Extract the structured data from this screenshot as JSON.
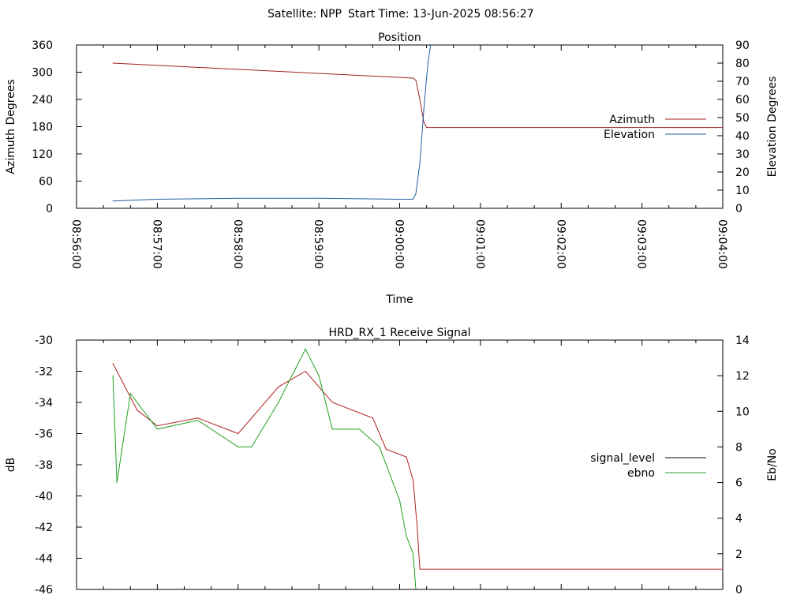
{
  "header": {
    "satellite": "Satellite: NPP",
    "start_time": "Start Time: 13-Jun-2025 08:56:27"
  },
  "colors": {
    "azimuth": "#a02020",
    "elevation": "#2060a0",
    "signal_level": "#b02020",
    "ebno": "#20a020",
    "ebno_low": "#2060c0"
  },
  "chart_data": [
    {
      "type": "line",
      "title": "Position",
      "xlabel": "Time",
      "ylabel": "Azimuth Degrees",
      "y2label": "Elevation Degrees",
      "x_ticks": [
        "08:56:00",
        "08:57:00",
        "08:58:00",
        "08:59:00",
        "09:00:00",
        "09:01:00",
        "09:02:00",
        "09:03:00",
        "09:04:00"
      ],
      "xlim": [
        "08:56:00",
        "09:04:00"
      ],
      "ylim": [
        0,
        360
      ],
      "y_ticks": [
        0,
        60,
        120,
        180,
        240,
        300,
        360
      ],
      "y2lim": [
        0,
        90
      ],
      "y2_ticks": [
        0,
        10,
        20,
        30,
        40,
        50,
        60,
        70,
        80,
        90
      ],
      "legend_position": "right",
      "series": [
        {
          "name": "Azimuth",
          "axis": "y",
          "points": [
            [
              "08:56:27",
              320
            ],
            [
              "09:00:10",
              287
            ],
            [
              "09:00:12",
              282
            ],
            [
              "09:00:15",
              240
            ],
            [
              "09:00:18",
              190
            ],
            [
              "09:00:20",
              178
            ],
            [
              "09:04:00",
              178
            ]
          ]
        },
        {
          "name": "Elevation",
          "axis": "y2",
          "points": [
            [
              "08:56:27",
              4
            ],
            [
              "08:57:00",
              5
            ],
            [
              "08:58:00",
              5.5
            ],
            [
              "08:59:00",
              5.5
            ],
            [
              "09:00:00",
              5
            ],
            [
              "09:00:10",
              5
            ],
            [
              "09:00:12",
              8
            ],
            [
              "09:00:15",
              25
            ],
            [
              "09:00:18",
              55
            ],
            [
              "09:00:21",
              80
            ],
            [
              "09:00:23",
              90
            ]
          ]
        }
      ]
    },
    {
      "type": "line",
      "title": "HRD_RX_1 Receive Signal",
      "ylabel": "dB",
      "y2label": "Eb/No",
      "xlim": [
        "08:56:00",
        "09:04:00"
      ],
      "ylim": [
        -46,
        -30
      ],
      "y_ticks": [
        -46,
        -44,
        -42,
        -40,
        -38,
        -36,
        -34,
        -32,
        -30
      ],
      "y2lim": [
        0,
        14
      ],
      "y2_ticks": [
        0,
        2,
        4,
        6,
        8,
        10,
        12,
        14
      ],
      "legend_position": "right",
      "series": [
        {
          "name": "signal_level",
          "axis": "y",
          "points": [
            [
              "08:56:27",
              -31.5
            ],
            [
              "08:56:45",
              -34.5
            ],
            [
              "08:57:00",
              -35.5
            ],
            [
              "08:57:30",
              -35
            ],
            [
              "08:58:00",
              -36
            ],
            [
              "08:58:30",
              -33
            ],
            [
              "08:58:50",
              -32
            ],
            [
              "08:59:10",
              -34
            ],
            [
              "08:59:40",
              -35
            ],
            [
              "08:59:50",
              -37
            ],
            [
              "09:00:05",
              -37.5
            ],
            [
              "09:00:10",
              -39
            ],
            [
              "09:00:13",
              -42
            ],
            [
              "09:00:15",
              -44.7
            ],
            [
              "09:04:00",
              -44.7
            ]
          ]
        },
        {
          "name": "ebno",
          "axis": "y2",
          "points": [
            [
              "08:56:27",
              12
            ],
            [
              "08:56:30",
              6
            ],
            [
              "08:56:40",
              11
            ],
            [
              "08:57:00",
              9
            ],
            [
              "08:57:30",
              9.5
            ],
            [
              "08:58:00",
              8
            ],
            [
              "08:58:10",
              8
            ],
            [
              "08:58:30",
              10.5
            ],
            [
              "08:58:50",
              13.5
            ],
            [
              "08:59:00",
              12
            ],
            [
              "08:59:10",
              9
            ],
            [
              "08:59:30",
              9
            ],
            [
              "08:59:45",
              8
            ],
            [
              "08:59:55",
              6
            ],
            [
              "09:00:00",
              5
            ],
            [
              "09:00:05",
              3
            ],
            [
              "09:00:10",
              2
            ],
            [
              "09:00:12",
              0
            ]
          ]
        }
      ]
    }
  ]
}
